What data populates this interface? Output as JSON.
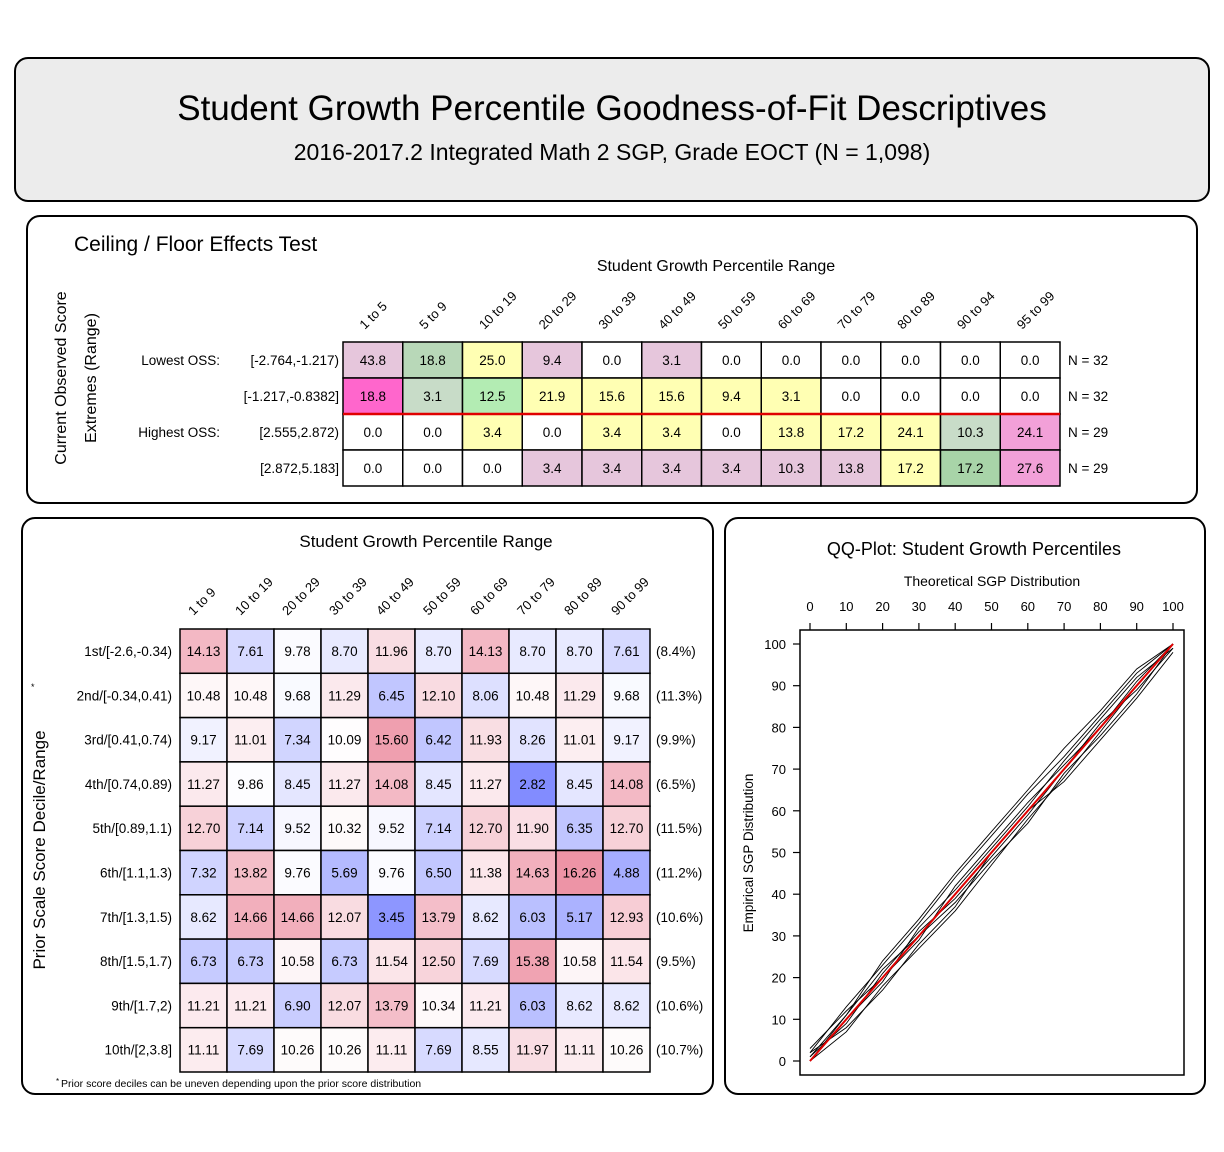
{
  "header": {
    "title": "Student Growth Percentile Goodness-of-Fit Descriptives",
    "subtitle": "2016-2017.2 Integrated Math 2 SGP, Grade EOCT (N = 1,098)"
  },
  "chart_data": [
    {
      "type": "table",
      "title": "Ceiling / Floor Effects Test",
      "column_header": "Student Growth Percentile Range",
      "row_axis_label_1": "Current Observed Score",
      "row_axis_label_2": "Extremes (Range)",
      "columns": [
        "1 to 5",
        "5 to 9",
        "10 to 19",
        "20 to 29",
        "30 to 39",
        "40 to 49",
        "50 to 59",
        "60 to 69",
        "70 to 79",
        "80 to 89",
        "90 to 94",
        "95 to 99"
      ],
      "rows": [
        {
          "group": "Lowest OSS:",
          "label": "[-2.764,-1.217)",
          "n": "N = 32",
          "values": [
            "43.8",
            "18.8",
            "25.0",
            "9.4",
            "0.0",
            "3.1",
            "0.0",
            "0.0",
            "0.0",
            "0.0",
            "0.0",
            "0.0"
          ],
          "colors": [
            "#e6c6dc",
            "#b8d8b8",
            "#ffffb3",
            "#e6c6dc",
            "#ffffff",
            "#e6c6dc",
            "#ffffff",
            "#ffffff",
            "#ffffff",
            "#ffffff",
            "#ffffff",
            "#ffffff"
          ]
        },
        {
          "group": "",
          "label": "[-1.217,-0.8382]",
          "n": "N = 32",
          "values": [
            "18.8",
            "3.1",
            "12.5",
            "21.9",
            "15.6",
            "15.6",
            "9.4",
            "3.1",
            "0.0",
            "0.0",
            "0.0",
            "0.0"
          ],
          "colors": [
            "#ff66cc",
            "#c8dcc8",
            "#b3ecb3",
            "#ffffb3",
            "#ffffb3",
            "#ffffb3",
            "#ffffb3",
            "#ffffb3",
            "#ffffff",
            "#ffffff",
            "#ffffff",
            "#ffffff"
          ]
        },
        {
          "group": "Highest OSS:",
          "label": "[2.555,2.872)",
          "n": "N = 29",
          "values": [
            "0.0",
            "0.0",
            "3.4",
            "0.0",
            "3.4",
            "3.4",
            "0.0",
            "13.8",
            "17.2",
            "24.1",
            "10.3",
            "24.1"
          ],
          "colors": [
            "#ffffff",
            "#ffffff",
            "#ffffb3",
            "#ffffff",
            "#ffffb3",
            "#ffffb3",
            "#ffffff",
            "#ffffb3",
            "#ffffb3",
            "#ffffb3",
            "#c8dcc8",
            "#f2a0d8"
          ]
        },
        {
          "group": "",
          "label": "[2.872,5.183]",
          "n": "N = 29",
          "values": [
            "0.0",
            "0.0",
            "0.0",
            "3.4",
            "3.4",
            "3.4",
            "3.4",
            "10.3",
            "13.8",
            "17.2",
            "17.2",
            "27.6"
          ],
          "colors": [
            "#ffffff",
            "#ffffff",
            "#ffffff",
            "#e6c6dc",
            "#e6c6dc",
            "#e6c6dc",
            "#e6c6dc",
            "#e6c6dc",
            "#e6c6dc",
            "#ffffb3",
            "#a8d4a8",
            "#f2a0d8"
          ]
        }
      ]
    },
    {
      "type": "heatmap",
      "title": "Student Growth Percentile Range",
      "ylabel": "Prior Scale Score Decile/Range",
      "ylabel_marker": "*",
      "footnote_marker": "*",
      "footnote": "Prior score deciles can be uneven depending upon the prior score distribution",
      "columns": [
        "1 to 9",
        "10 to 19",
        "20 to 29",
        "30 to 39",
        "40 to 49",
        "50 to 59",
        "60 to 69",
        "70 to 79",
        "80 to 89",
        "90 to 99"
      ],
      "rows": [
        {
          "label": "1st/[-2.6,-0.34)",
          "pct": "(8.4%)",
          "values": [
            "14.13",
            "7.61",
            "9.78",
            "8.70",
            "11.96",
            "8.70",
            "14.13",
            "8.70",
            "8.70",
            "7.61"
          ]
        },
        {
          "label": "2nd/[-0.34,0.41)",
          "pct": "(11.3%)",
          "values": [
            "10.48",
            "10.48",
            "9.68",
            "11.29",
            "6.45",
            "12.10",
            "8.06",
            "10.48",
            "11.29",
            "9.68"
          ]
        },
        {
          "label": "3rd/[0.41,0.74)",
          "pct": "(9.9%)",
          "values": [
            "9.17",
            "11.01",
            "7.34",
            "10.09",
            "15.60",
            "6.42",
            "11.93",
            "8.26",
            "11.01",
            "9.17"
          ]
        },
        {
          "label": "4th/[0.74,0.89)",
          "pct": "(6.5%)",
          "values": [
            "11.27",
            "9.86",
            "8.45",
            "11.27",
            "14.08",
            "8.45",
            "11.27",
            "2.82",
            "8.45",
            "14.08"
          ]
        },
        {
          "label": "5th/[0.89,1.1)",
          "pct": "(11.5%)",
          "values": [
            "12.70",
            "7.14",
            "9.52",
            "10.32",
            "9.52",
            "7.14",
            "12.70",
            "11.90",
            "6.35",
            "12.70"
          ]
        },
        {
          "label": "6th/[1.1,1.3)",
          "pct": "(11.2%)",
          "values": [
            "7.32",
            "13.82",
            "9.76",
            "5.69",
            "9.76",
            "6.50",
            "11.38",
            "14.63",
            "16.26",
            "4.88"
          ]
        },
        {
          "label": "7th/[1.3,1.5)",
          "pct": "(10.6%)",
          "values": [
            "8.62",
            "14.66",
            "14.66",
            "12.07",
            "3.45",
            "13.79",
            "8.62",
            "6.03",
            "5.17",
            "12.93"
          ]
        },
        {
          "label": "8th/[1.5,1.7)",
          "pct": "(9.5%)",
          "values": [
            "6.73",
            "6.73",
            "10.58",
            "6.73",
            "11.54",
            "12.50",
            "7.69",
            "15.38",
            "10.58",
            "11.54"
          ]
        },
        {
          "label": "9th/[1.7,2)",
          "pct": "(10.6%)",
          "values": [
            "11.21",
            "11.21",
            "6.90",
            "12.07",
            "13.79",
            "10.34",
            "11.21",
            "6.03",
            "8.62",
            "8.62"
          ]
        },
        {
          "label": "10th/[2,3.8]",
          "pct": "(10.7%)",
          "values": [
            "11.11",
            "7.69",
            "10.26",
            "10.26",
            "11.11",
            "7.69",
            "8.55",
            "11.97",
            "11.11",
            "10.26"
          ]
        }
      ]
    },
    {
      "type": "line",
      "title": "QQ-Plot: Student Growth Percentiles",
      "xlabel": "Theoretical SGP Distribution",
      "ylabel": "Empirical SGP Distribution",
      "xlim": [
        0,
        100
      ],
      "ylim": [
        0,
        100
      ],
      "x_ticks": [
        "0",
        "10",
        "20",
        "30",
        "40",
        "50",
        "60",
        "70",
        "80",
        "90",
        "100"
      ],
      "y_ticks": [
        "0",
        "10",
        "20",
        "30",
        "40",
        "50",
        "60",
        "70",
        "80",
        "90",
        "100"
      ],
      "reference_line": {
        "x": [
          0,
          100
        ],
        "y": [
          0,
          100
        ],
        "color": "#e00000"
      },
      "series_color": "#000000",
      "series": [
        {
          "x": [
            0,
            10,
            20,
            30,
            40,
            50,
            60,
            70,
            80,
            90,
            100
          ],
          "y": [
            0,
            7,
            18,
            27,
            36,
            47,
            58,
            68,
            79,
            90,
            100
          ]
        },
        {
          "x": [
            0,
            10,
            20,
            30,
            40,
            50,
            60,
            70,
            80,
            90,
            100
          ],
          "y": [
            2,
            13,
            23,
            33,
            44,
            54,
            64,
            73,
            83,
            93,
            100
          ]
        },
        {
          "x": [
            0,
            10,
            20,
            30,
            40,
            50,
            60,
            70,
            80,
            90,
            100
          ],
          "y": [
            1,
            9,
            21,
            31,
            39,
            49,
            59,
            70,
            81,
            89,
            99
          ]
        },
        {
          "x": [
            0,
            10,
            20,
            30,
            40,
            50,
            60,
            70,
            80,
            90,
            100
          ],
          "y": [
            3,
            12,
            20,
            29,
            42,
            52,
            62,
            71,
            80,
            91,
            100
          ]
        },
        {
          "x": [
            0,
            10,
            20,
            30,
            40,
            50,
            60,
            70,
            80,
            90,
            100
          ],
          "y": [
            0,
            10,
            19,
            32,
            41,
            51,
            61,
            72,
            82,
            92,
            99
          ]
        },
        {
          "x": [
            0,
            10,
            20,
            30,
            40,
            50,
            60,
            70,
            80,
            90,
            100
          ],
          "y": [
            1,
            11,
            22,
            30,
            38,
            48,
            57,
            69,
            78,
            88,
            100
          ]
        },
        {
          "x": [
            0,
            10,
            20,
            30,
            40,
            50,
            60,
            70,
            80,
            90,
            100
          ],
          "y": [
            2,
            8,
            17,
            28,
            37,
            50,
            60,
            67,
            77,
            87,
            98
          ]
        },
        {
          "x": [
            0,
            10,
            20,
            30,
            40,
            50,
            60,
            70,
            80,
            90,
            100
          ],
          "y": [
            0,
            11,
            24,
            34,
            45,
            55,
            65,
            75,
            84,
            94,
            100
          ]
        }
      ]
    }
  ]
}
